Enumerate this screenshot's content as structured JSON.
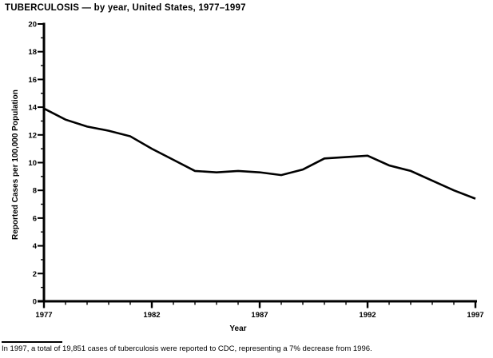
{
  "figure": {
    "footnote": "In 1997, a total of 19,851 cases of tuberculosis were reported to CDC, representing a 7% decrease from 1996."
  },
  "chart_data": {
    "type": "line",
    "title": "TUBERCULOSIS — by year, United States, 1977–1997",
    "xlabel": "Year",
    "ylabel": "Reported Cases per 100,000 Population",
    "x": [
      1977,
      1978,
      1979,
      1980,
      1981,
      1982,
      1983,
      1984,
      1985,
      1986,
      1987,
      1988,
      1989,
      1990,
      1991,
      1992,
      1993,
      1994,
      1995,
      1996,
      1997
    ],
    "series": [
      {
        "name": "Reported tuberculosis cases per 100,000 population",
        "values": [
          13.9,
          13.1,
          12.6,
          12.3,
          11.9,
          11.0,
          10.2,
          9.4,
          9.3,
          9.4,
          9.3,
          9.1,
          9.5,
          10.3,
          10.4,
          10.5,
          9.8,
          9.4,
          8.7,
          8.0,
          7.4
        ]
      }
    ],
    "xlim": [
      1977,
      1997
    ],
    "ylim": [
      0,
      20
    ],
    "ytick_major_step": 2,
    "ytick_minor_step": 1,
    "xticks_major": [
      1977,
      1982,
      1987,
      1992,
      1997
    ],
    "xtick_minor_step": 1,
    "grid": false,
    "legend_position": "none",
    "line_color": "#000000",
    "axis_color": "#000000",
    "background_color": "#ffffff"
  }
}
